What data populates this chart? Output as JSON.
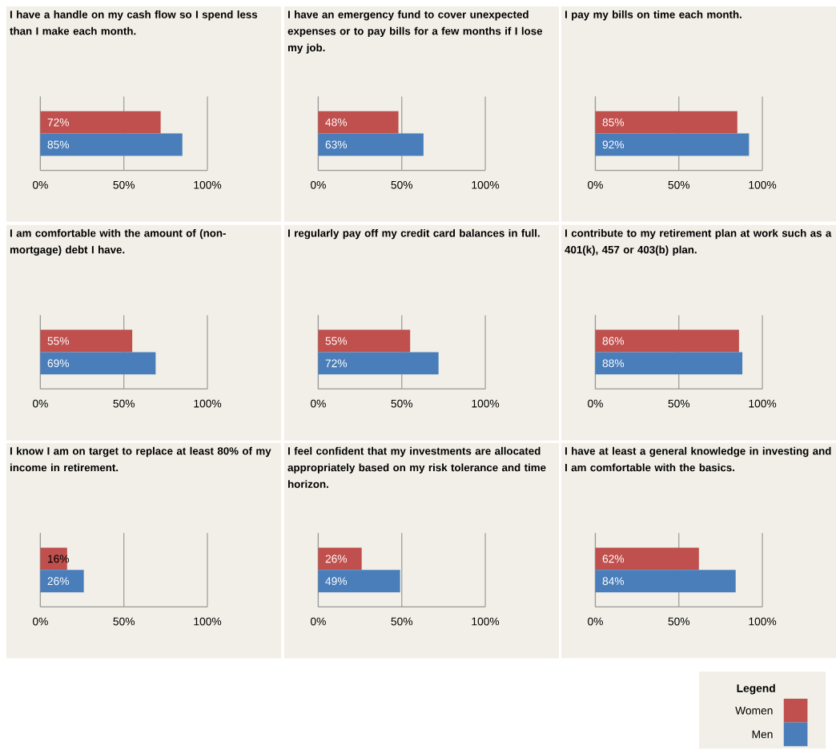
{
  "chart_data": [
    {
      "type": "bar",
      "orientation": "horizontal",
      "title": "I have a handle on my cash flow so I spend less than I make each month.",
      "categories": [
        null
      ],
      "xlim": [
        0,
        100
      ],
      "xticks": [
        {
          "value": 0,
          "label": "0%"
        },
        {
          "value": 50,
          "label": "50%"
        },
        {
          "value": 100,
          "label": "100%"
        }
      ],
      "grid": "x",
      "tick_labels": "x",
      "series": [
        {
          "color": "#c0504d",
          "values": [
            72
          ],
          "value_labels": [
            "72%"
          ]
        },
        {
          "color": "#4a7ebb",
          "values": [
            85
          ],
          "value_labels": [
            "85%"
          ]
        }
      ]
    },
    {
      "type": "bar",
      "orientation": "horizontal",
      "title": "I have an emergency fund to cover unexpected expenses or to pay bills for a few months if I lose my job.",
      "categories": [
        null
      ],
      "xlim": [
        0,
        100
      ],
      "xticks": [
        {
          "value": 0,
          "label": "0%"
        },
        {
          "value": 50,
          "label": "50%"
        },
        {
          "value": 100,
          "label": "100%"
        }
      ],
      "grid": "x",
      "tick_labels": "x",
      "series": [
        {
          "color": "#c0504d",
          "values": [
            48
          ],
          "value_labels": [
            "48%"
          ]
        },
        {
          "color": "#4a7ebb",
          "values": [
            63
          ],
          "value_labels": [
            "63%"
          ]
        }
      ]
    },
    {
      "type": "bar",
      "orientation": "horizontal",
      "title": "I pay my bills on time each month.",
      "categories": [
        null
      ],
      "xlim": [
        0,
        100
      ],
      "xticks": [
        {
          "value": 0,
          "label": "0%"
        },
        {
          "value": 50,
          "label": "50%"
        },
        {
          "value": 100,
          "label": "100%"
        }
      ],
      "grid": "x",
      "tick_labels": "x",
      "series": [
        {
          "color": "#c0504d",
          "values": [
            85
          ],
          "value_labels": [
            "85%"
          ]
        },
        {
          "color": "#4a7ebb",
          "values": [
            92
          ],
          "value_labels": [
            "92%"
          ]
        }
      ]
    },
    {
      "type": "bar",
      "orientation": "horizontal",
      "title": "I am comfortable with the amount of (non-mortgage) debt I have.",
      "categories": [
        null
      ],
      "xlim": [
        0,
        100
      ],
      "xticks": [
        {
          "value": 0,
          "label": "0%"
        },
        {
          "value": 50,
          "label": "50%"
        },
        {
          "value": 100,
          "label": "100%"
        }
      ],
      "grid": "x",
      "tick_labels": "x",
      "series": [
        {
          "color": "#c0504d",
          "values": [
            55
          ],
          "value_labels": [
            "55%"
          ]
        },
        {
          "color": "#4a7ebb",
          "values": [
            69
          ],
          "value_labels": [
            "69%"
          ]
        }
      ]
    },
    {
      "type": "bar",
      "orientation": "horizontal",
      "title": "I regularly pay off my credit card balances in full.",
      "categories": [
        null
      ],
      "xlim": [
        0,
        100
      ],
      "xticks": [
        {
          "value": 0,
          "label": "0%"
        },
        {
          "value": 50,
          "label": "50%"
        },
        {
          "value": 100,
          "label": "100%"
        }
      ],
      "grid": "x",
      "tick_labels": "x",
      "series": [
        {
          "color": "#c0504d",
          "values": [
            55
          ],
          "value_labels": [
            "55%"
          ]
        },
        {
          "color": "#4a7ebb",
          "values": [
            72
          ],
          "value_labels": [
            "72%"
          ]
        }
      ]
    },
    {
      "type": "bar",
      "orientation": "horizontal",
      "title": "I contribute to my retirement plan at work such as a 401(k), 457 or 403(b) plan.",
      "categories": [
        null
      ],
      "xlim": [
        0,
        100
      ],
      "xticks": [
        {
          "value": 0,
          "label": "0%"
        },
        {
          "value": 50,
          "label": "50%"
        },
        {
          "value": 100,
          "label": "100%"
        }
      ],
      "grid": "x",
      "tick_labels": "x",
      "series": [
        {
          "color": "#c0504d",
          "values": [
            86
          ],
          "value_labels": [
            "86%"
          ]
        },
        {
          "color": "#4a7ebb",
          "values": [
            88
          ],
          "value_labels": [
            "88%"
          ]
        }
      ]
    },
    {
      "type": "bar",
      "orientation": "horizontal",
      "title": "I know I am on target to replace at least 80% of my income in retirement.",
      "categories": [
        null
      ],
      "xlim": [
        0,
        100
      ],
      "xticks": [
        {
          "value": 0,
          "label": "0%"
        },
        {
          "value": 50,
          "label": "50%"
        },
        {
          "value": 100,
          "label": "100%"
        }
      ],
      "grid": "x",
      "tick_labels": "x",
      "series": [
        {
          "color": "#c0504d",
          "values": [
            16
          ],
          "value_labels": [
            "16%"
          ]
        },
        {
          "color": "#4a7ebb",
          "values": [
            26
          ],
          "value_labels": [
            "26%"
          ]
        }
      ]
    },
    {
      "type": "bar",
      "orientation": "horizontal",
      "title": "I feel confident that my investments are allocated appropriately based on my risk tolerance and time horizon.",
      "categories": [
        null
      ],
      "xlim": [
        0,
        100
      ],
      "xticks": [
        {
          "value": 0,
          "label": "0%"
        },
        {
          "value": 50,
          "label": "50%"
        },
        {
          "value": 100,
          "label": "100%"
        }
      ],
      "grid": "x",
      "tick_labels": "x",
      "series": [
        {
          "color": "#c0504d",
          "values": [
            26
          ],
          "value_labels": [
            "26%"
          ]
        },
        {
          "color": "#4a7ebb",
          "values": [
            49
          ],
          "value_labels": [
            "49%"
          ]
        }
      ]
    },
    {
      "type": "bar",
      "orientation": "horizontal",
      "title": "I have at least a general knowledge in investing and I am comfortable with the basics.",
      "categories": [
        null
      ],
      "xlim": [
        0,
        100
      ],
      "xticks": [
        {
          "value": 0,
          "label": "0%"
        },
        {
          "value": 50,
          "label": "50%"
        },
        {
          "value": 100,
          "label": "100%"
        }
      ],
      "grid": "x",
      "tick_labels": "x",
      "legend": "bottom right",
      "legend_title": "Legend",
      "series": [
        {
          "name": "Women",
          "color": "#c0504d",
          "values": [
            62
          ],
          "value_labels": [
            "62%"
          ]
        },
        {
          "name": "Men",
          "color": "#4a7ebb",
          "values": [
            84
          ],
          "value_labels": [
            "84%"
          ]
        }
      ]
    }
  ]
}
